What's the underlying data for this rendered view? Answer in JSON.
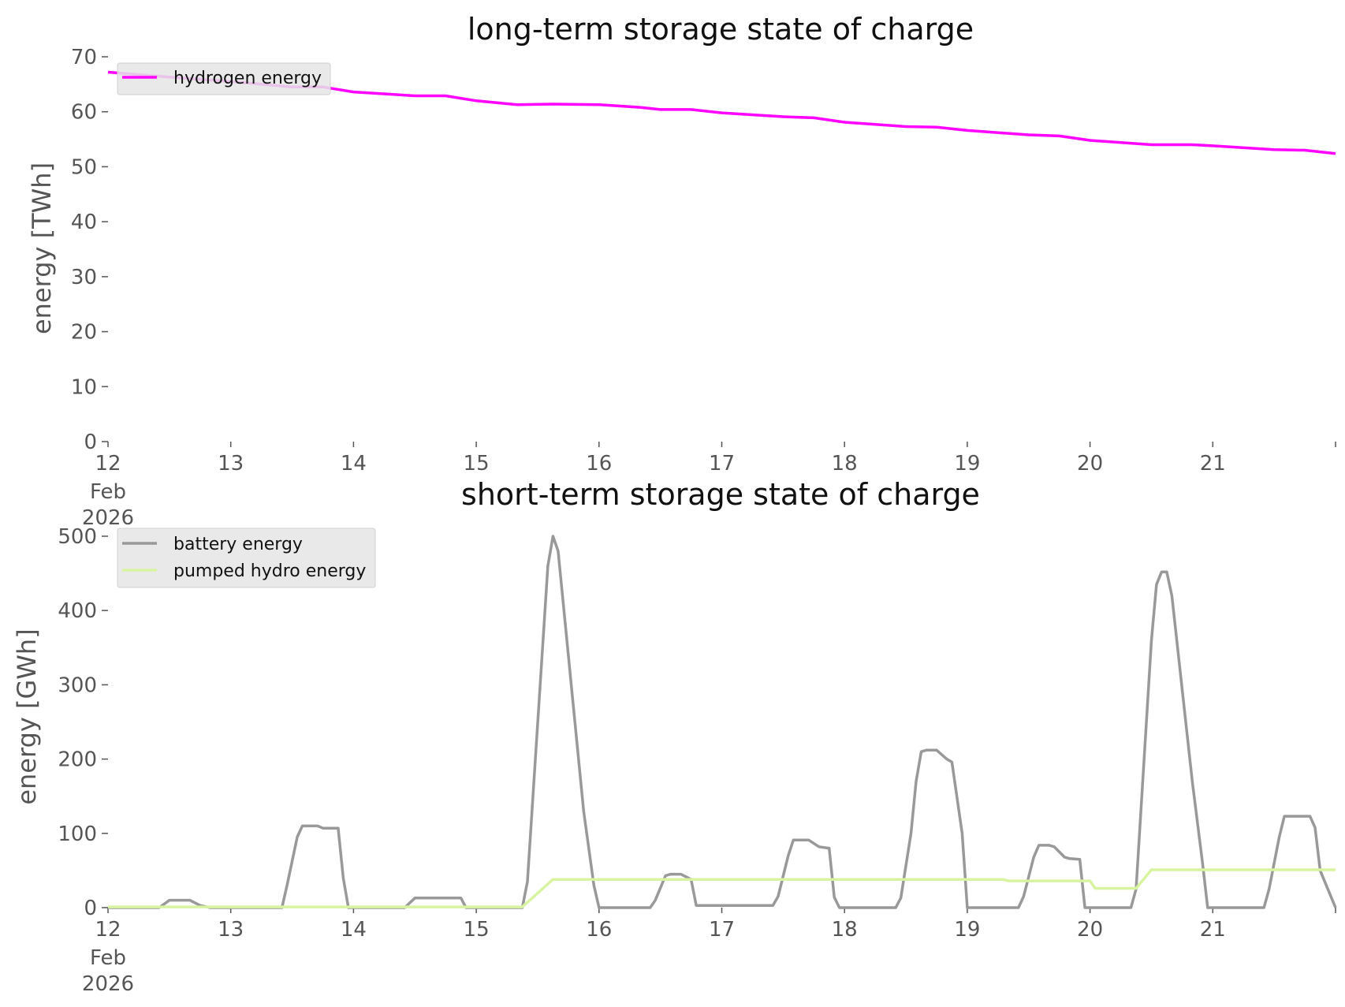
{
  "charts": [
    {
      "title": "long-term storage state of charge",
      "ylabel": "energy [TWh]",
      "yticks": [
        "0",
        "10",
        "20",
        "30",
        "40",
        "50",
        "60",
        "70"
      ],
      "xticks": [
        "12",
        "13",
        "14",
        "15",
        "16",
        "17",
        "18",
        "19",
        "20",
        "21"
      ],
      "xtick_sub": [
        "Feb",
        "2026"
      ],
      "legend": [
        "hydrogen energy"
      ]
    },
    {
      "title": "short-term storage state of charge",
      "ylabel": "energy [GWh]",
      "yticks": [
        "0",
        "100",
        "200",
        "300",
        "400",
        "500"
      ],
      "xticks": [
        "12",
        "13",
        "14",
        "15",
        "16",
        "17",
        "18",
        "19",
        "20",
        "21"
      ],
      "xtick_sub": [
        "Feb",
        "2026"
      ],
      "legend": [
        "battery energy",
        "pumped hydro energy"
      ]
    }
  ],
  "colors": {
    "hydrogen": "#ff00ff",
    "battery": "#999999",
    "pumped_hydro": "#d8f4a0"
  },
  "chart_data": [
    {
      "type": "line",
      "title": "long-term storage state of charge",
      "xlabel": "",
      "ylabel": "energy [TWh]",
      "xlim": [
        "2026-02-12",
        "2026-02-22"
      ],
      "ylim": [
        0,
        70
      ],
      "grid": false,
      "legend_position": "top-left",
      "series": [
        {
          "name": "hydrogen energy",
          "color": "#ff00ff",
          "points": [
            [
              "2026-02-12 00:00",
              67.2
            ],
            [
              "2026-02-12 12:00",
              66.3
            ],
            [
              "2026-02-13 00:00",
              65.5
            ],
            [
              "2026-02-13 12:00",
              64.5
            ],
            [
              "2026-02-13 18:00",
              64.5
            ],
            [
              "2026-02-14 00:00",
              63.6
            ],
            [
              "2026-02-14 12:00",
              62.9
            ],
            [
              "2026-02-14 18:00",
              62.9
            ],
            [
              "2026-02-15 00:00",
              62.0
            ],
            [
              "2026-02-15 08:00",
              61.3
            ],
            [
              "2026-02-15 15:00",
              61.4
            ],
            [
              "2026-02-16 00:00",
              61.3
            ],
            [
              "2026-02-16 08:00",
              60.8
            ],
            [
              "2026-02-16 12:00",
              60.4
            ],
            [
              "2026-02-16 18:00",
              60.4
            ],
            [
              "2026-02-17 00:00",
              59.8
            ],
            [
              "2026-02-17 12:00",
              59.1
            ],
            [
              "2026-02-17 18:00",
              58.9
            ],
            [
              "2026-02-18 00:00",
              58.1
            ],
            [
              "2026-02-18 12:00",
              57.3
            ],
            [
              "2026-02-18 18:00",
              57.2
            ],
            [
              "2026-02-19 00:00",
              56.6
            ],
            [
              "2026-02-19 12:00",
              55.8
            ],
            [
              "2026-02-19 18:00",
              55.6
            ],
            [
              "2026-02-20 00:00",
              54.8
            ],
            [
              "2026-02-20 12:00",
              54.0
            ],
            [
              "2026-02-20 20:00",
              54.0
            ],
            [
              "2026-02-21 00:00",
              53.8
            ],
            [
              "2026-02-21 12:00",
              53.1
            ],
            [
              "2026-02-21 18:00",
              53.0
            ],
            [
              "2026-02-22 00:00",
              52.4
            ]
          ]
        }
      ]
    },
    {
      "type": "line",
      "title": "short-term storage state of charge",
      "xlabel": "",
      "ylabel": "energy [GWh]",
      "xlim": [
        "2026-02-12",
        "2026-02-22"
      ],
      "ylim": [
        0,
        500
      ],
      "grid": false,
      "legend_position": "top-left",
      "series": [
        {
          "name": "battery energy",
          "color": "#999999",
          "points": [
            [
              "2026-02-12 00:00",
              0
            ],
            [
              "2026-02-12 10:00",
              0
            ],
            [
              "2026-02-12 12:00",
              10
            ],
            [
              "2026-02-12 16:00",
              10
            ],
            [
              "2026-02-12 18:00",
              3
            ],
            [
              "2026-02-12 20:00",
              0
            ],
            [
              "2026-02-13 10:00",
              0
            ],
            [
              "2026-02-13 11:00",
              30
            ],
            [
              "2026-02-13 13:00",
              95
            ],
            [
              "2026-02-13 14:00",
              110
            ],
            [
              "2026-02-13 17:00",
              110
            ],
            [
              "2026-02-13 18:00",
              107
            ],
            [
              "2026-02-13 21:00",
              107
            ],
            [
              "2026-02-13 22:00",
              40
            ],
            [
              "2026-02-13 23:00",
              0
            ],
            [
              "2026-02-14 10:00",
              0
            ],
            [
              "2026-02-14 12:00",
              13
            ],
            [
              "2026-02-14 21:00",
              13
            ],
            [
              "2026-02-14 22:00",
              0
            ],
            [
              "2026-02-15 09:00",
              0
            ],
            [
              "2026-02-15 10:00",
              35
            ],
            [
              "2026-02-15 14:00",
              460
            ],
            [
              "2026-02-15 15:00",
              500
            ],
            [
              "2026-02-15 16:00",
              480
            ],
            [
              "2026-02-15 17:00",
              410
            ],
            [
              "2026-02-15 21:00",
              130
            ],
            [
              "2026-02-15 23:00",
              30
            ],
            [
              "2026-02-16 00:00",
              0
            ],
            [
              "2026-02-16 10:00",
              0
            ],
            [
              "2026-02-16 11:00",
              10
            ],
            [
              "2026-02-16 13:00",
              43
            ],
            [
              "2026-02-16 14:00",
              45
            ],
            [
              "2026-02-16 16:00",
              45
            ],
            [
              "2026-02-16 18:00",
              38
            ],
            [
              "2026-02-16 19:00",
              3
            ],
            [
              "2026-02-17 10:00",
              3
            ],
            [
              "2026-02-17 11:00",
              15
            ],
            [
              "2026-02-17 13:00",
              70
            ],
            [
              "2026-02-17 14:00",
              91
            ],
            [
              "2026-02-17 17:00",
              91
            ],
            [
              "2026-02-17 19:00",
              82
            ],
            [
              "2026-02-17 21:00",
              80
            ],
            [
              "2026-02-17 22:00",
              14
            ],
            [
              "2026-02-17 23:00",
              0
            ],
            [
              "2026-02-18 10:00",
              0
            ],
            [
              "2026-02-18 11:00",
              13
            ],
            [
              "2026-02-18 13:00",
              100
            ],
            [
              "2026-02-18 14:00",
              170
            ],
            [
              "2026-02-18 15:00",
              210
            ],
            [
              "2026-02-18 16:00",
              212
            ],
            [
              "2026-02-18 18:00",
              212
            ],
            [
              "2026-02-18 20:00",
              200
            ],
            [
              "2026-02-18 21:00",
              196
            ],
            [
              "2026-02-18 23:00",
              100
            ],
            [
              "2026-02-19 00:00",
              0
            ],
            [
              "2026-02-19 10:00",
              0
            ],
            [
              "2026-02-19 11:00",
              15
            ],
            [
              "2026-02-19 13:00",
              68
            ],
            [
              "2026-02-19 14:00",
              84
            ],
            [
              "2026-02-19 16:00",
              84
            ],
            [
              "2026-02-19 17:00",
              82
            ],
            [
              "2026-02-19 19:00",
              68
            ],
            [
              "2026-02-19 20:00",
              66
            ],
            [
              "2026-02-19 22:00",
              65
            ],
            [
              "2026-02-19 23:00",
              0
            ],
            [
              "2026-02-20 08:00",
              0
            ],
            [
              "2026-02-20 09:00",
              25
            ],
            [
              "2026-02-20 12:00",
              360
            ],
            [
              "2026-02-20 13:00",
              435
            ],
            [
              "2026-02-20 14:00",
              452
            ],
            [
              "2026-02-20 15:00",
              452
            ],
            [
              "2026-02-20 16:00",
              420
            ],
            [
              "2026-02-20 20:00",
              170
            ],
            [
              "2026-02-20 22:00",
              60
            ],
            [
              "2026-02-20 23:00",
              0
            ],
            [
              "2026-02-21 10:00",
              0
            ],
            [
              "2026-02-21 11:00",
              25
            ],
            [
              "2026-02-21 13:00",
              95
            ],
            [
              "2026-02-21 14:00",
              123
            ],
            [
              "2026-02-21 19:00",
              123
            ],
            [
              "2026-02-21 20:00",
              108
            ],
            [
              "2026-02-21 21:00",
              50
            ],
            [
              "2026-02-22 00:00",
              0
            ]
          ]
        },
        {
          "name": "pumped hydro energy",
          "color": "#d8f4a0",
          "points": [
            [
              "2026-02-12 00:00",
              1
            ],
            [
              "2026-02-15 09:00",
              1
            ],
            [
              "2026-02-15 15:00",
              38
            ],
            [
              "2026-02-19 07:00",
              38
            ],
            [
              "2026-02-19 08:00",
              36
            ],
            [
              "2026-02-20 00:00",
              36
            ],
            [
              "2026-02-20 01:00",
              26
            ],
            [
              "2026-02-20 09:00",
              26
            ],
            [
              "2026-02-20 12:00",
              51
            ],
            [
              "2026-02-22 00:00",
              51
            ]
          ]
        }
      ]
    }
  ]
}
